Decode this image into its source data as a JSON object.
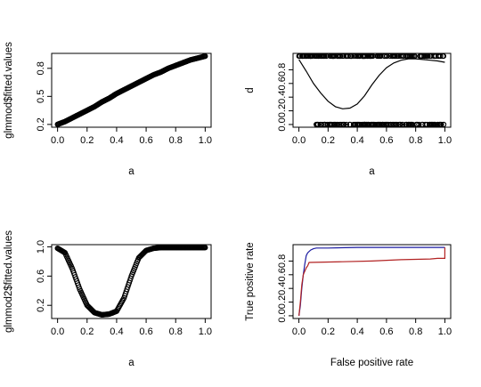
{
  "chart_data": [
    {
      "type": "scatter",
      "panel": "top-left",
      "xlabel": "a",
      "ylabel": "glmmod$fitted.values",
      "xlim": [
        0,
        1
      ],
      "ylim": [
        0.2,
        0.95
      ],
      "xticks": [
        "0.0",
        "0.2",
        "0.4",
        "0.6",
        "0.8",
        "1.0"
      ],
      "yticks": [
        "0.2",
        "0.5",
        "0.8"
      ],
      "series": [
        {
          "marker": "open-circle",
          "color": "#000000",
          "x": [
            0.0,
            0.05,
            0.1,
            0.15,
            0.2,
            0.25,
            0.3,
            0.35,
            0.4,
            0.45,
            0.5,
            0.55,
            0.6,
            0.65,
            0.7,
            0.75,
            0.8,
            0.85,
            0.9,
            0.95,
            1.0
          ],
          "y": [
            0.2,
            0.23,
            0.27,
            0.31,
            0.35,
            0.39,
            0.44,
            0.48,
            0.53,
            0.57,
            0.61,
            0.65,
            0.69,
            0.73,
            0.76,
            0.8,
            0.83,
            0.86,
            0.89,
            0.91,
            0.93
          ]
        }
      ]
    },
    {
      "type": "scatter",
      "panel": "top-right",
      "xlabel": "a",
      "ylabel": "d",
      "xlim": [
        0,
        1
      ],
      "ylim": [
        0,
        1
      ],
      "xticks": [
        "0.0",
        "0.2",
        "0.4",
        "0.6",
        "0.8",
        "1.0"
      ],
      "yticks": [
        "0.0",
        "0.2",
        "0.4",
        "0.6",
        "0.8"
      ],
      "series": [
        {
          "name": "",
          "marker": "open-circle",
          "color": "#000000",
          "points_at_1_x_range": [
            0.0,
            1.0
          ],
          "points_at_0_x_range": [
            0.1,
            1.0
          ]
        },
        {
          "name": "",
          "marker": "line",
          "color": "#000000",
          "x": [
            0.0,
            0.05,
            0.1,
            0.15,
            0.2,
            0.25,
            0.3,
            0.35,
            0.4,
            0.45,
            0.5,
            0.55,
            0.6,
            0.65,
            0.7,
            0.75,
            0.8,
            0.85,
            0.9,
            0.95,
            1.0
          ],
          "y": [
            0.95,
            0.78,
            0.6,
            0.46,
            0.34,
            0.26,
            0.23,
            0.24,
            0.3,
            0.42,
            0.58,
            0.72,
            0.83,
            0.9,
            0.94,
            0.96,
            0.96,
            0.95,
            0.94,
            0.93,
            0.91
          ]
        }
      ]
    },
    {
      "type": "scatter",
      "panel": "bottom-left",
      "xlabel": "a",
      "ylabel": "glmmod2$fitted.values",
      "xlim": [
        0,
        1
      ],
      "ylim": [
        0.05,
        1.0
      ],
      "xticks": [
        "0.0",
        "0.2",
        "0.4",
        "0.6",
        "0.8",
        "1.0"
      ],
      "yticks": [
        "0.2",
        "0.6",
        "1.0"
      ],
      "series": [
        {
          "marker": "open-circle",
          "color": "#000000",
          "x": [
            0.0,
            0.05,
            0.1,
            0.15,
            0.2,
            0.25,
            0.3,
            0.35,
            0.4,
            0.45,
            0.5,
            0.55,
            0.6,
            0.65,
            0.7,
            0.75,
            0.8,
            0.85,
            0.9,
            0.95,
            1.0
          ],
          "y": [
            0.98,
            0.92,
            0.7,
            0.42,
            0.2,
            0.1,
            0.07,
            0.08,
            0.12,
            0.3,
            0.6,
            0.85,
            0.95,
            0.98,
            0.99,
            0.99,
            0.99,
            0.99,
            0.99,
            0.99,
            0.99
          ]
        }
      ]
    },
    {
      "type": "line",
      "panel": "bottom-right",
      "xlabel": "False positive rate",
      "ylabel": "True positive rate",
      "xlim": [
        0,
        1
      ],
      "ylim": [
        0,
        1
      ],
      "xticks": [
        "0.0",
        "0.2",
        "0.4",
        "0.6",
        "0.8",
        "1.0"
      ],
      "yticks": [
        "0.0",
        "0.2",
        "0.4",
        "0.6",
        "0.8"
      ],
      "series": [
        {
          "color": "#1a1aa0",
          "x": [
            0.0,
            0.01,
            0.02,
            0.03,
            0.04,
            0.05,
            0.06,
            0.08,
            0.1,
            0.12,
            0.2,
            0.4,
            0.6,
            0.8,
            0.85,
            1.0
          ],
          "y": [
            0.0,
            0.15,
            0.4,
            0.6,
            0.75,
            0.88,
            0.92,
            0.96,
            0.98,
            0.99,
            0.99,
            1.0,
            1.0,
            1.0,
            1.0,
            1.0
          ]
        },
        {
          "color": "#b22222",
          "x": [
            0.0,
            0.01,
            0.02,
            0.03,
            0.04,
            0.05,
            0.06,
            0.07,
            0.3,
            0.5,
            0.7,
            0.9,
            0.95,
            1.0,
            1.0
          ],
          "y": [
            0.0,
            0.2,
            0.45,
            0.6,
            0.65,
            0.7,
            0.73,
            0.78,
            0.79,
            0.8,
            0.82,
            0.83,
            0.84,
            0.84,
            1.0
          ]
        }
      ]
    }
  ]
}
